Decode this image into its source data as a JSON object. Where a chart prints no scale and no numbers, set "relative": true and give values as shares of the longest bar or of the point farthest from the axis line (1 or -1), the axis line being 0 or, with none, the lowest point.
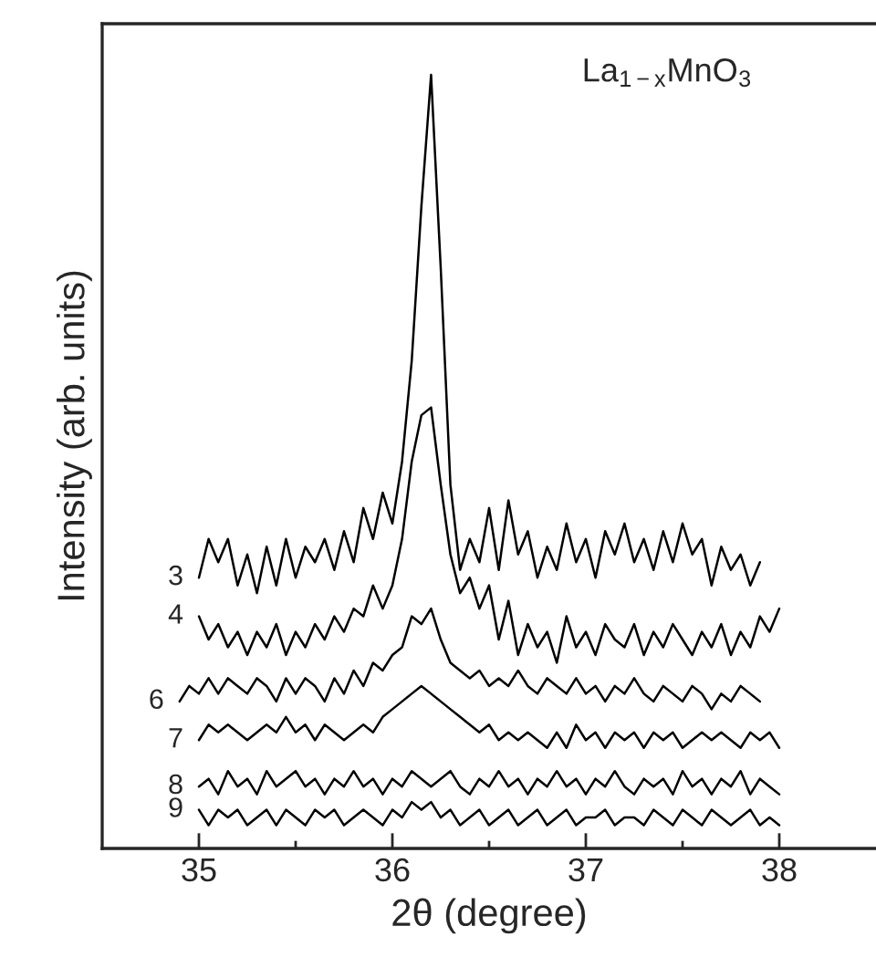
{
  "chart_data": {
    "type": "line",
    "relative": true,
    "xlabel": "2θ (degree)",
    "ylabel": "Intensity (arb. units)",
    "annotations": [
      "La$_{1−x}$MnO$_{3}$"
    ],
    "xlim": [
      34.5,
      38.5
    ],
    "xticks": [
      35,
      36,
      37,
      38
    ],
    "legend": false,
    "grid": false,
    "line_style": "solid",
    "x": [
      34.9,
      34.95,
      35.0,
      35.05,
      35.1,
      35.15,
      35.2,
      35.25,
      35.3,
      35.35,
      35.4,
      35.45,
      35.5,
      35.55,
      35.6,
      35.65,
      35.7,
      35.75,
      35.8,
      35.85,
      35.9,
      35.95,
      36.0,
      36.05,
      36.1,
      36.15,
      36.2,
      36.25,
      36.3,
      36.35,
      36.4,
      36.45,
      36.5,
      36.55,
      36.6,
      36.65,
      36.7,
      36.75,
      36.8,
      36.85,
      36.9,
      36.95,
      37.0,
      37.05,
      37.1,
      37.15,
      37.2,
      37.25,
      37.3,
      37.35,
      37.4,
      37.45,
      37.5,
      37.55,
      37.6,
      37.65,
      37.7,
      37.75,
      37.8,
      37.85,
      37.9,
      37.95,
      38.0
    ],
    "series": [
      {
        "name": "3",
        "color": "#000000",
        "values": [
          null,
          null,
          0.35,
          0.4,
          0.37,
          0.4,
          0.34,
          0.38,
          0.33,
          0.39,
          0.34,
          0.4,
          0.35,
          0.39,
          0.37,
          0.4,
          0.36,
          0.41,
          0.37,
          0.44,
          0.4,
          0.46,
          0.42,
          0.5,
          0.63,
          0.83,
          1.0,
          0.75,
          0.47,
          0.36,
          0.4,
          0.37,
          0.44,
          0.36,
          0.45,
          0.38,
          0.41,
          0.35,
          0.39,
          0.36,
          0.42,
          0.37,
          0.4,
          0.35,
          0.41,
          0.38,
          0.42,
          0.37,
          0.4,
          0.36,
          0.41,
          0.37,
          0.42,
          0.38,
          0.4,
          0.34,
          0.39,
          0.36,
          0.38,
          0.34,
          0.37,
          null,
          null
        ]
      },
      {
        "name": "4",
        "color": "#000000",
        "values": [
          null,
          null,
          0.3,
          0.27,
          0.29,
          0.26,
          0.28,
          0.25,
          0.28,
          0.26,
          0.29,
          0.25,
          0.28,
          0.26,
          0.29,
          0.27,
          0.3,
          0.28,
          0.31,
          0.3,
          0.34,
          0.31,
          0.34,
          0.4,
          0.5,
          0.56,
          0.57,
          0.47,
          0.38,
          0.33,
          0.35,
          0.31,
          0.34,
          0.27,
          0.32,
          0.25,
          0.29,
          0.26,
          0.28,
          0.24,
          0.3,
          0.26,
          0.28,
          0.25,
          0.29,
          0.27,
          0.26,
          0.29,
          0.25,
          0.28,
          0.26,
          0.29,
          0.27,
          0.25,
          0.28,
          0.26,
          0.29,
          0.25,
          0.28,
          0.26,
          0.3,
          0.28,
          0.31
        ]
      },
      {
        "name": "6",
        "color": "#000000",
        "values": [
          0.19,
          0.21,
          0.2,
          0.22,
          0.2,
          0.22,
          0.21,
          0.2,
          0.22,
          0.21,
          0.19,
          0.22,
          0.2,
          0.22,
          0.21,
          0.19,
          0.22,
          0.2,
          0.23,
          0.21,
          0.24,
          0.23,
          0.25,
          0.26,
          0.3,
          0.29,
          0.31,
          0.27,
          0.24,
          0.23,
          0.22,
          0.23,
          0.21,
          0.22,
          0.21,
          0.23,
          0.21,
          0.2,
          0.22,
          0.21,
          0.2,
          0.22,
          0.2,
          0.21,
          0.19,
          0.21,
          0.2,
          0.22,
          0.2,
          0.19,
          0.21,
          0.2,
          0.19,
          0.21,
          0.2,
          0.18,
          0.2,
          0.19,
          0.21,
          0.2,
          0.19,
          null,
          null
        ]
      },
      {
        "name": "7",
        "color": "#000000",
        "values": [
          null,
          null,
          0.14,
          0.16,
          0.15,
          0.16,
          0.15,
          0.14,
          0.15,
          0.16,
          0.15,
          0.17,
          0.15,
          0.16,
          0.14,
          0.16,
          0.15,
          0.14,
          0.15,
          0.16,
          0.15,
          0.17,
          0.18,
          0.19,
          0.2,
          0.21,
          0.2,
          0.19,
          0.18,
          0.17,
          0.16,
          0.15,
          0.16,
          0.14,
          0.15,
          0.14,
          0.15,
          0.14,
          0.13,
          0.15,
          0.13,
          0.16,
          0.14,
          0.15,
          0.13,
          0.15,
          0.14,
          0.15,
          0.13,
          0.15,
          0.14,
          0.15,
          0.13,
          0.14,
          0.15,
          0.14,
          0.15,
          0.14,
          0.13,
          0.15,
          0.14,
          0.15,
          0.13
        ]
      },
      {
        "name": "8",
        "color": "#000000",
        "values": [
          null,
          null,
          0.08,
          0.09,
          0.07,
          0.1,
          0.08,
          0.09,
          0.07,
          0.1,
          0.08,
          0.09,
          0.1,
          0.08,
          0.09,
          0.07,
          0.09,
          0.08,
          0.1,
          0.08,
          0.09,
          0.07,
          0.09,
          0.08,
          0.1,
          0.09,
          0.08,
          0.09,
          0.1,
          0.08,
          0.07,
          0.09,
          0.08,
          0.1,
          0.08,
          0.09,
          0.07,
          0.09,
          0.08,
          0.1,
          0.08,
          0.09,
          0.07,
          0.09,
          0.08,
          0.1,
          0.08,
          0.07,
          0.09,
          0.08,
          0.09,
          0.07,
          0.1,
          0.08,
          0.09,
          0.07,
          0.09,
          0.08,
          0.1,
          0.07,
          0.09,
          0.08,
          0.07
        ]
      },
      {
        "name": "9",
        "color": "#000000",
        "values": [
          null,
          null,
          0.05,
          0.03,
          0.05,
          0.04,
          0.05,
          0.03,
          0.04,
          0.05,
          0.03,
          0.05,
          0.04,
          0.03,
          0.05,
          0.04,
          0.05,
          0.03,
          0.04,
          0.05,
          0.04,
          0.03,
          0.05,
          0.04,
          0.06,
          0.05,
          0.06,
          0.04,
          0.05,
          0.03,
          0.04,
          0.05,
          0.03,
          0.04,
          0.05,
          0.03,
          0.04,
          0.05,
          0.03,
          0.04,
          0.05,
          0.03,
          0.04,
          0.04,
          0.05,
          0.03,
          0.04,
          0.04,
          0.03,
          0.05,
          0.04,
          0.03,
          0.05,
          0.04,
          0.03,
          0.05,
          0.04,
          0.03,
          0.04,
          0.05,
          0.03,
          0.04,
          0.03
        ]
      }
    ]
  }
}
